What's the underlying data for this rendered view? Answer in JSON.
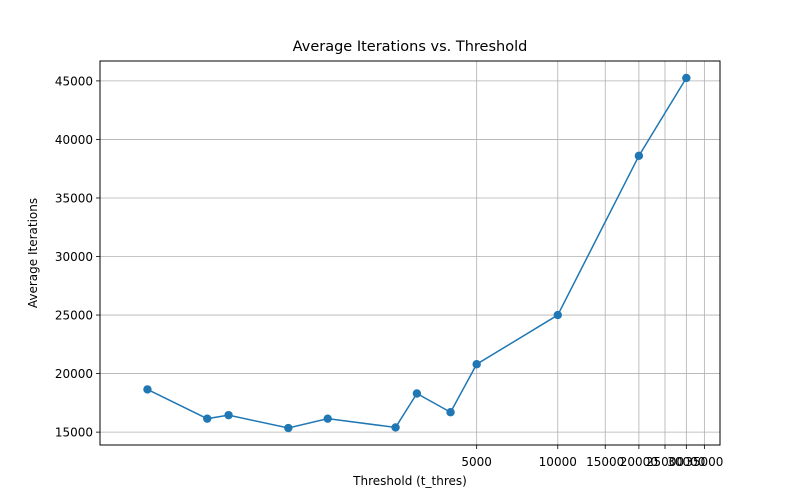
{
  "chart_data": {
    "type": "line",
    "title": "Average Iterations vs. Threshold",
    "xlabel": "Threshold (t_thres)",
    "ylabel": "Average Iterations",
    "x_scale": "log",
    "grid": true,
    "x_ticks": [
      5000,
      10000,
      15000,
      20000,
      25000,
      30000,
      35000
    ],
    "y_ticks": [
      15000,
      20000,
      25000,
      30000,
      35000,
      40000,
      45000
    ],
    "xlim": [
      200,
      40000
    ],
    "ylim": [
      13900,
      46700
    ],
    "line_color": "#1f77b4",
    "series": [
      {
        "x": [
          300,
          500,
          600,
          1000,
          1400,
          2500,
          3000,
          4000,
          5000,
          10000,
          20000,
          30000
        ],
        "y": [
          18650,
          16150,
          16450,
          15350,
          16150,
          15400,
          18300,
          16700,
          20800,
          25000,
          38600,
          45250
        ]
      }
    ]
  }
}
